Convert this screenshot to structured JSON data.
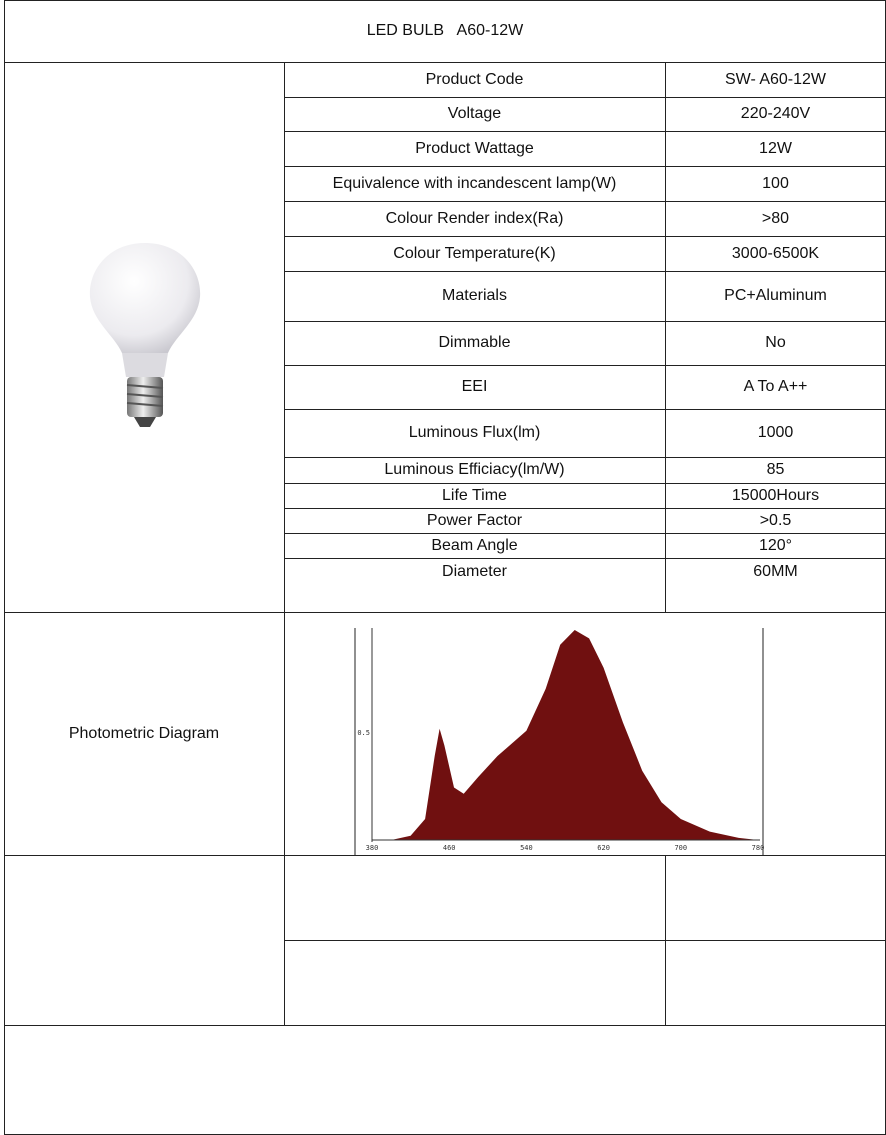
{
  "header": {
    "title": "LED BULB   A60-12W"
  },
  "specs": {
    "rows": [
      [
        "Product Code",
        "SW- A60-12W"
      ],
      [
        "Voltage",
        "220-240V"
      ],
      [
        "Product Wattage",
        "12W"
      ],
      [
        "Equivalence with incandescent lamp(W)",
        "100"
      ],
      [
        "Colour Render index(Ra)",
        ">80"
      ],
      [
        "Colour Temperature(K)",
        "3000-6500K"
      ],
      [
        "Materials",
        "PC+Aluminum"
      ],
      [
        "Dimmable",
        "No"
      ],
      [
        "EEI",
        "A To A++"
      ],
      [
        "Luminous Flux(lm)",
        "1000"
      ],
      [
        "Luminous Efficiacy(lm/W)",
        "85"
      ],
      [
        "Life Time",
        "15000Hours"
      ],
      [
        "Power Factor",
        ">0.5"
      ],
      [
        "Beam Angle",
        "120°"
      ],
      [
        "Diameter",
        "60MM"
      ]
    ]
  },
  "photometric": {
    "label": "Photometric Diagram",
    "y_label": "0.5",
    "x_ticks": [
      "380",
      "460",
      "540",
      "620",
      "700",
      "780"
    ]
  }
}
